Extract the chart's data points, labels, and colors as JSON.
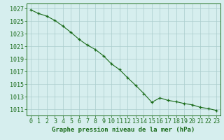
{
  "x": [
    0,
    1,
    2,
    3,
    4,
    5,
    6,
    7,
    8,
    9,
    10,
    11,
    12,
    13,
    14,
    15,
    16,
    17,
    18,
    19,
    20,
    21,
    22,
    23
  ],
  "y": [
    1026.8,
    1026.2,
    1025.8,
    1025.1,
    1024.2,
    1023.2,
    1022.1,
    1021.2,
    1020.5,
    1019.5,
    1018.2,
    1017.3,
    1016.0,
    1014.8,
    1013.5,
    1012.1,
    1012.8,
    1012.4,
    1012.2,
    1011.9,
    1011.7,
    1011.3,
    1011.1,
    1010.8
  ],
  "line_color": "#1a6b1a",
  "marker_color": "#1a6b1a",
  "bg_color": "#d6eeee",
  "grid_color": "#aacccc",
  "axis_label_color": "#1a6b1a",
  "xlabel": "Graphe pression niveau de la mer (hPa)",
  "ytick_labels": [
    "1011",
    "1013",
    "1015",
    "1017",
    "1019",
    "1021",
    "1023",
    "1025",
    "1027"
  ],
  "ytick_values": [
    1011,
    1013,
    1015,
    1017,
    1019,
    1021,
    1023,
    1025,
    1027
  ],
  "ylim": [
    1010.0,
    1027.8
  ],
  "xlim": [
    -0.5,
    23.5
  ],
  "xtick_labels": [
    "0",
    "1",
    "2",
    "3",
    "4",
    "5",
    "6",
    "7",
    "8",
    "9",
    "10",
    "11",
    "12",
    "13",
    "14",
    "15",
    "16",
    "17",
    "18",
    "19",
    "20",
    "21",
    "22",
    "23"
  ],
  "fontsize_label": 6.5,
  "fontsize_tick": 6.0
}
